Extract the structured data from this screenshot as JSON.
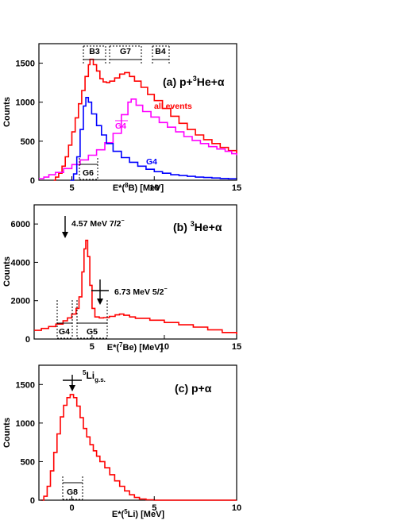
{
  "chart_data": [
    {
      "type": "line",
      "panel_label": "(a) p+³He+α",
      "xlabel": "E*(⁸B) [MeV]",
      "ylabel": "Counts",
      "xlim": [
        3,
        15
      ],
      "ylim": [
        0,
        1750
      ],
      "xticks": [
        5,
        10,
        15
      ],
      "yticks": [
        0,
        500,
        1000,
        1500
      ],
      "series": [
        {
          "name": "all events",
          "color": "#ff0000",
          "points": [
            [
              3.9,
              0
            ],
            [
              4.0,
              40
            ],
            [
              4.2,
              90
            ],
            [
              4.4,
              180
            ],
            [
              4.6,
              300
            ],
            [
              4.8,
              450
            ],
            [
              5.0,
              620
            ],
            [
              5.2,
              800
            ],
            [
              5.4,
              980
            ],
            [
              5.6,
              1150
            ],
            [
              5.8,
              1330
            ],
            [
              6.0,
              1480
            ],
            [
              6.1,
              1550
            ],
            [
              6.3,
              1480
            ],
            [
              6.5,
              1400
            ],
            [
              6.7,
              1300
            ],
            [
              6.9,
              1260
            ],
            [
              7.1,
              1250
            ],
            [
              7.3,
              1270
            ],
            [
              7.6,
              1310
            ],
            [
              7.9,
              1360
            ],
            [
              8.2,
              1380
            ],
            [
              8.5,
              1330
            ],
            [
              8.8,
              1270
            ],
            [
              9.2,
              1190
            ],
            [
              9.6,
              1100
            ],
            [
              10.0,
              1020
            ],
            [
              10.5,
              920
            ],
            [
              11.0,
              820
            ],
            [
              11.5,
              730
            ],
            [
              12.0,
              650
            ],
            [
              12.5,
              580
            ],
            [
              13.0,
              520
            ],
            [
              13.5,
              470
            ],
            [
              14.0,
              420
            ],
            [
              14.5,
              380
            ],
            [
              15.0,
              340
            ]
          ]
        },
        {
          "name": "G4",
          "color": "#ff00ff",
          "points": [
            [
              3.0,
              20
            ],
            [
              3.3,
              40
            ],
            [
              3.6,
              70
            ],
            [
              4.0,
              100
            ],
            [
              4.5,
              150
            ],
            [
              5.0,
              200
            ],
            [
              5.5,
              260
            ],
            [
              6.0,
              320
            ],
            [
              6.5,
              390
            ],
            [
              7.0,
              480
            ],
            [
              7.5,
              600
            ],
            [
              8.0,
              840
            ],
            [
              8.4,
              1000
            ],
            [
              8.6,
              1040
            ],
            [
              8.9,
              960
            ],
            [
              9.3,
              880
            ],
            [
              9.8,
              810
            ],
            [
              10.3,
              740
            ],
            [
              10.8,
              680
            ],
            [
              11.3,
              620
            ],
            [
              11.8,
              560
            ],
            [
              12.3,
              510
            ],
            [
              12.8,
              470
            ],
            [
              13.3,
              430
            ],
            [
              13.8,
              400
            ],
            [
              14.3,
              370
            ],
            [
              14.7,
              340
            ],
            [
              15.0,
              320
            ]
          ]
        },
        {
          "name": "G4",
          "color": "#0000ff",
          "points": [
            [
              4.9,
              0
            ],
            [
              5.1,
              80
            ],
            [
              5.3,
              300
            ],
            [
              5.5,
              650
            ],
            [
              5.7,
              950
            ],
            [
              5.85,
              1060
            ],
            [
              6.0,
              1000
            ],
            [
              6.2,
              850
            ],
            [
              6.5,
              700
            ],
            [
              6.8,
              580
            ],
            [
              7.1,
              470
            ],
            [
              7.5,
              370
            ],
            [
              8.0,
              290
            ],
            [
              8.5,
              230
            ],
            [
              9.0,
              180
            ],
            [
              9.5,
              140
            ],
            [
              10.0,
              110
            ],
            [
              10.5,
              90
            ],
            [
              11.0,
              70
            ],
            [
              11.5,
              60
            ],
            [
              12.0,
              50
            ],
            [
              12.5,
              40
            ],
            [
              13.0,
              35
            ],
            [
              13.5,
              28
            ],
            [
              14.0,
              22
            ],
            [
              14.5,
              18
            ],
            [
              15.0,
              15
            ]
          ]
        }
      ],
      "annotations": [
        "all events",
        "G4",
        "G4"
      ],
      "gate_boxes": [
        "B3",
        "G7",
        "B4",
        "G6"
      ]
    },
    {
      "type": "line",
      "panel_label": "(b) ³He+α",
      "xlabel": "E*(⁷Be) [MeV]",
      "ylabel": "Counts",
      "xlim": [
        1,
        15
      ],
      "ylim": [
        0,
        7000
      ],
      "xticks": [
        5,
        10,
        15
      ],
      "yticks": [
        0,
        2000,
        4000,
        6000
      ],
      "series": [
        {
          "name": "",
          "color": "#ff0000",
          "points": [
            [
              1.0,
              450
            ],
            [
              1.5,
              550
            ],
            [
              2.0,
              650
            ],
            [
              2.5,
              780
            ],
            [
              3.0,
              950
            ],
            [
              3.3,
              1100
            ],
            [
              3.6,
              1300
            ],
            [
              3.9,
              1600
            ],
            [
              4.1,
              2200
            ],
            [
              4.3,
              3500
            ],
            [
              4.45,
              4700
            ],
            [
              4.57,
              5150
            ],
            [
              4.7,
              4300
            ],
            [
              4.85,
              2800
            ],
            [
              5.0,
              1600
            ],
            [
              5.2,
              1150
            ],
            [
              5.5,
              1100
            ],
            [
              5.8,
              1120
            ],
            [
              6.2,
              1180
            ],
            [
              6.6,
              1260
            ],
            [
              6.9,
              1300
            ],
            [
              7.2,
              1240
            ],
            [
              7.6,
              1150
            ],
            [
              8.0,
              1080
            ],
            [
              9.0,
              980
            ],
            [
              10.0,
              860
            ],
            [
              11.0,
              740
            ],
            [
              12.0,
              620
            ],
            [
              13.0,
              480
            ],
            [
              14.0,
              340
            ],
            [
              15.0,
              250
            ]
          ]
        }
      ],
      "annotations": [
        "4.57 MeV 7/2⁻",
        "6.73 MeV 5/2⁻"
      ],
      "gate_boxes": [
        "G4",
        "G5"
      ]
    },
    {
      "type": "line",
      "panel_label": "(c) p+α",
      "xlabel": "E*(⁵Li) [MeV]",
      "ylabel": "Counts",
      "xlim": [
        -2,
        10
      ],
      "ylim": [
        0,
        1750
      ],
      "xticks": [
        0,
        5,
        10
      ],
      "yticks": [
        0,
        500,
        1000,
        1500
      ],
      "series": [
        {
          "name": "",
          "color": "#ff0000",
          "points": [
            [
              -1.9,
              0
            ],
            [
              -1.7,
              50
            ],
            [
              -1.5,
              180
            ],
            [
              -1.3,
              380
            ],
            [
              -1.1,
              620
            ],
            [
              -0.9,
              860
            ],
            [
              -0.7,
              1080
            ],
            [
              -0.5,
              1230
            ],
            [
              -0.3,
              1330
            ],
            [
              -0.1,
              1370
            ],
            [
              0.1,
              1330
            ],
            [
              0.3,
              1220
            ],
            [
              0.5,
              1070
            ],
            [
              0.7,
              930
            ],
            [
              0.9,
              820
            ],
            [
              1.1,
              720
            ],
            [
              1.3,
              640
            ],
            [
              1.5,
              570
            ],
            [
              1.7,
              500
            ],
            [
              2.0,
              420
            ],
            [
              2.3,
              330
            ],
            [
              2.6,
              250
            ],
            [
              2.9,
              180
            ],
            [
              3.2,
              120
            ],
            [
              3.5,
              70
            ],
            [
              3.8,
              35
            ],
            [
              4.1,
              15
            ],
            [
              4.5,
              5
            ],
            [
              5.0,
              0
            ],
            [
              10.0,
              0
            ]
          ]
        }
      ],
      "annotations": [
        "⁵Li",
        "g.s."
      ],
      "gate_boxes": [
        "G8"
      ]
    }
  ]
}
